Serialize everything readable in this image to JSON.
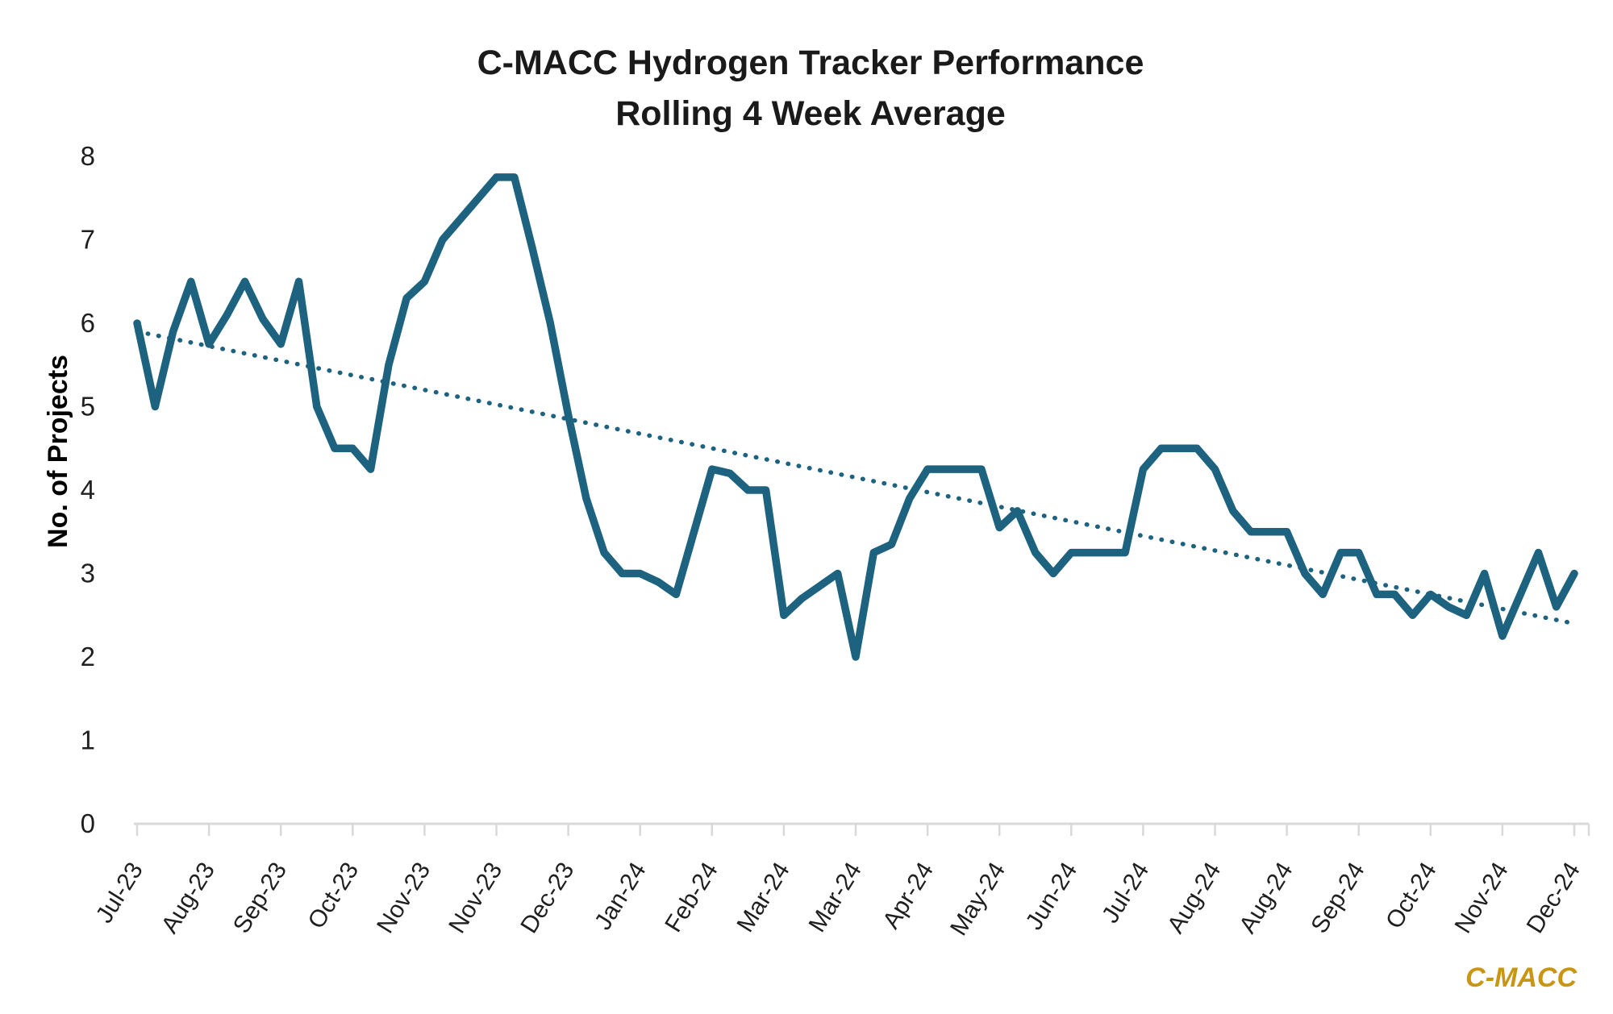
{
  "page": {
    "background": "#ffffff"
  },
  "chart_data": {
    "type": "line",
    "title_line1": "C-MACC Hydrogen Tracker Performance",
    "title_line2": "Rolling 4 Week Average",
    "ylabel": "No. of Projects",
    "xlabel": "",
    "ylim": [
      0,
      8
    ],
    "y_ticks": [
      0,
      1,
      2,
      3,
      4,
      5,
      6,
      7,
      8
    ],
    "grid": "off",
    "legend": "none",
    "x_labels": [
      "Jul-23",
      "Aug-23",
      "Sep-23",
      "Oct-23",
      "Nov-23",
      "Nov-23",
      "Dec-23",
      "Jan-24",
      "Feb-24",
      "Mar-24",
      "Mar-24",
      "Apr-24",
      "May-24",
      "Jun-24",
      "Jul-24",
      "Aug-24",
      "Aug-24",
      "Sep-24",
      "Oct-24",
      "Nov-24",
      "Dec-24"
    ],
    "points_per_label": 4,
    "series": [
      {
        "name": "Rolling 4 week average projects",
        "values": [
          6.0,
          5.0,
          5.9,
          6.5,
          5.75,
          6.1,
          6.5,
          6.05,
          5.75,
          6.5,
          5.0,
          4.5,
          4.5,
          4.25,
          5.5,
          6.3,
          6.5,
          7.0,
          7.25,
          7.5,
          7.75,
          7.75,
          6.9,
          6.0,
          4.9,
          3.9,
          3.25,
          3.0,
          3.0,
          2.9,
          2.75,
          3.5,
          4.25,
          4.2,
          4.0,
          4.0,
          2.5,
          2.7,
          2.85,
          3.0,
          2.0,
          3.25,
          3.35,
          3.9,
          4.25,
          4.25,
          4.25,
          4.25,
          3.55,
          3.75,
          3.25,
          3.0,
          3.25,
          3.25,
          3.25,
          3.25,
          4.25,
          4.5,
          4.5,
          4.5,
          4.25,
          3.75,
          3.5,
          3.5,
          3.5,
          3.0,
          2.75,
          3.25,
          3.25,
          2.75,
          2.75,
          2.5,
          2.75,
          2.6,
          2.5,
          3.0,
          2.25,
          2.75,
          3.25,
          2.6,
          3.0
        ]
      }
    ],
    "trend": {
      "style": "dotted-linear",
      "start": 5.9,
      "end": 2.4
    },
    "series_color": "#1d6380",
    "trend_color": "#1d6380",
    "axis_color": "#d9d9d9"
  },
  "branding": {
    "logo_text": "C-MACC",
    "color": "#c89614"
  }
}
